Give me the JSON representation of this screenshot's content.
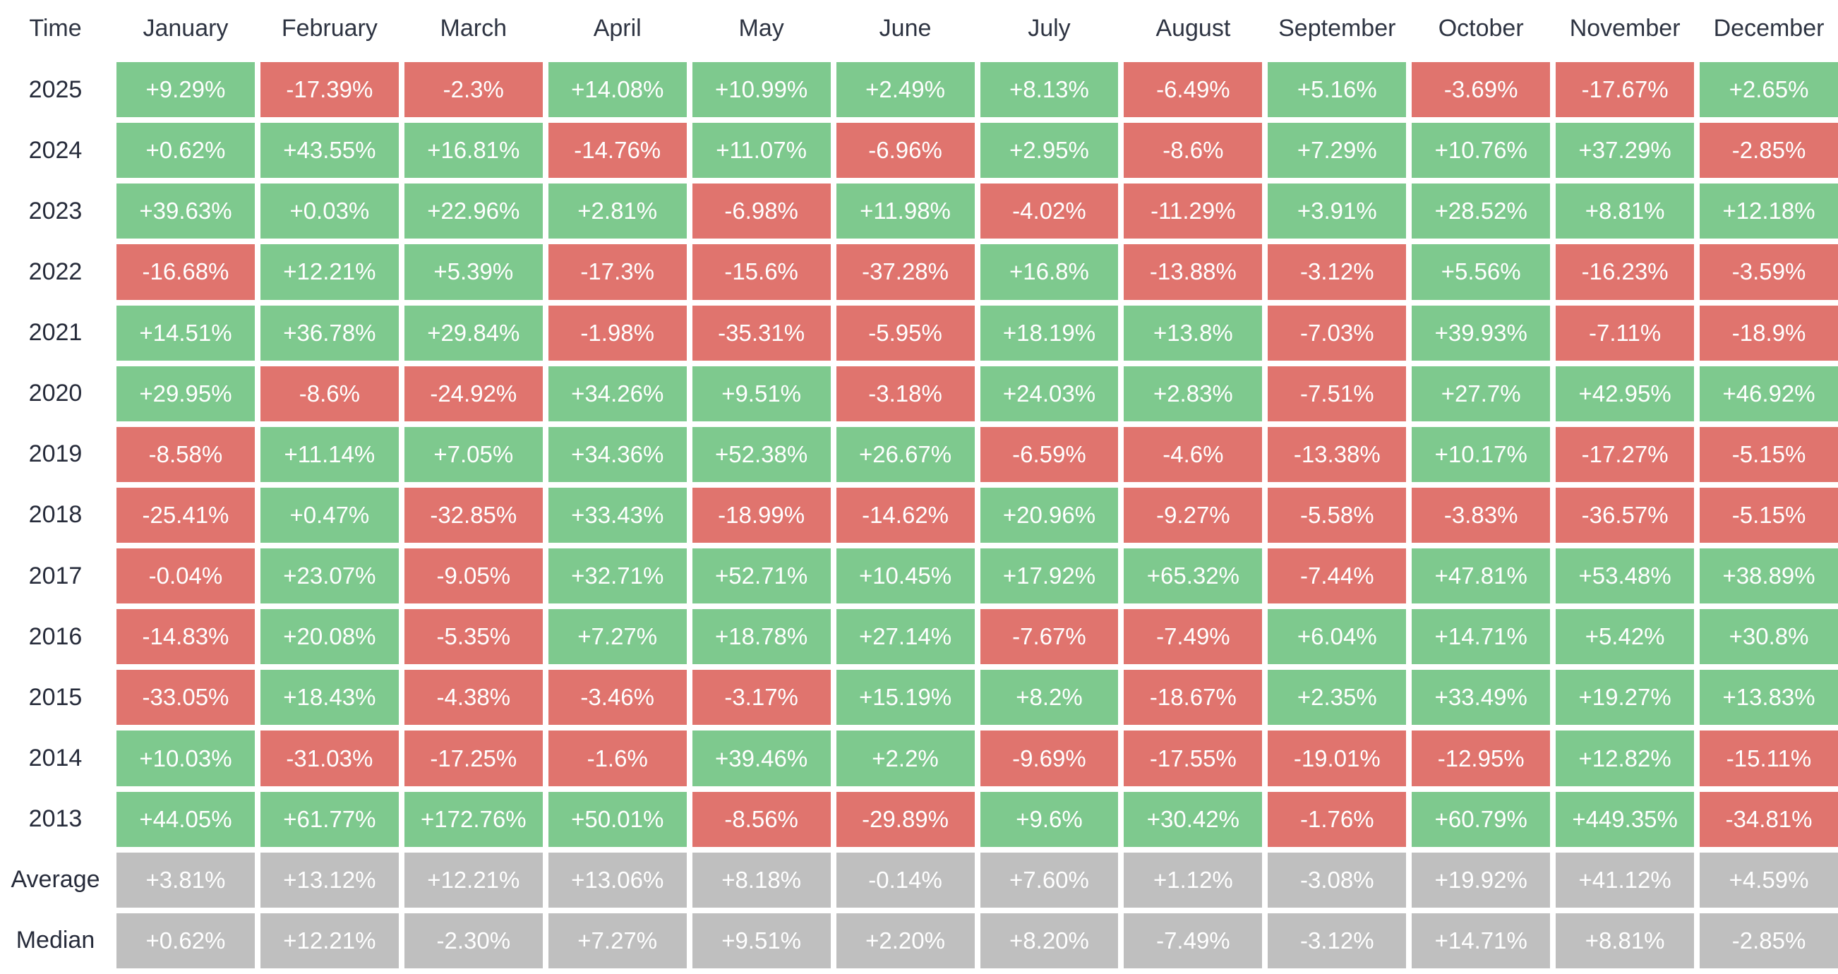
{
  "header": {
    "corner": "Time",
    "months": [
      "January",
      "February",
      "March",
      "April",
      "May",
      "June",
      "July",
      "August",
      "September",
      "October",
      "November",
      "December"
    ]
  },
  "rows": [
    {
      "label": "2025",
      "type": "year",
      "values": [
        "+9.29%",
        "-17.39%",
        "-2.3%",
        "+14.08%",
        "+10.99%",
        "+2.49%",
        "+8.13%",
        "-6.49%",
        "+5.16%",
        "-3.69%",
        "-17.67%",
        "+2.65%"
      ]
    },
    {
      "label": "2024",
      "type": "year",
      "values": [
        "+0.62%",
        "+43.55%",
        "+16.81%",
        "-14.76%",
        "+11.07%",
        "-6.96%",
        "+2.95%",
        "-8.6%",
        "+7.29%",
        "+10.76%",
        "+37.29%",
        "-2.85%"
      ]
    },
    {
      "label": "2023",
      "type": "year",
      "values": [
        "+39.63%",
        "+0.03%",
        "+22.96%",
        "+2.81%",
        "-6.98%",
        "+11.98%",
        "-4.02%",
        "-11.29%",
        "+3.91%",
        "+28.52%",
        "+8.81%",
        "+12.18%"
      ]
    },
    {
      "label": "2022",
      "type": "year",
      "values": [
        "-16.68%",
        "+12.21%",
        "+5.39%",
        "-17.3%",
        "-15.6%",
        "-37.28%",
        "+16.8%",
        "-13.88%",
        "-3.12%",
        "+5.56%",
        "-16.23%",
        "-3.59%"
      ]
    },
    {
      "label": "2021",
      "type": "year",
      "values": [
        "+14.51%",
        "+36.78%",
        "+29.84%",
        "-1.98%",
        "-35.31%",
        "-5.95%",
        "+18.19%",
        "+13.8%",
        "-7.03%",
        "+39.93%",
        "-7.11%",
        "-18.9%"
      ]
    },
    {
      "label": "2020",
      "type": "year",
      "values": [
        "+29.95%",
        "-8.6%",
        "-24.92%",
        "+34.26%",
        "+9.51%",
        "-3.18%",
        "+24.03%",
        "+2.83%",
        "-7.51%",
        "+27.7%",
        "+42.95%",
        "+46.92%"
      ]
    },
    {
      "label": "2019",
      "type": "year",
      "values": [
        "-8.58%",
        "+11.14%",
        "+7.05%",
        "+34.36%",
        "+52.38%",
        "+26.67%",
        "-6.59%",
        "-4.6%",
        "-13.38%",
        "+10.17%",
        "-17.27%",
        "-5.15%"
      ]
    },
    {
      "label": "2018",
      "type": "year",
      "values": [
        "-25.41%",
        "+0.47%",
        "-32.85%",
        "+33.43%",
        "-18.99%",
        "-14.62%",
        "+20.96%",
        "-9.27%",
        "-5.58%",
        "-3.83%",
        "-36.57%",
        "-5.15%"
      ]
    },
    {
      "label": "2017",
      "type": "year",
      "values": [
        "-0.04%",
        "+23.07%",
        "-9.05%",
        "+32.71%",
        "+52.71%",
        "+10.45%",
        "+17.92%",
        "+65.32%",
        "-7.44%",
        "+47.81%",
        "+53.48%",
        "+38.89%"
      ]
    },
    {
      "label": "2016",
      "type": "year",
      "values": [
        "-14.83%",
        "+20.08%",
        "-5.35%",
        "+7.27%",
        "+18.78%",
        "+27.14%",
        "-7.67%",
        "-7.49%",
        "+6.04%",
        "+14.71%",
        "+5.42%",
        "+30.8%"
      ]
    },
    {
      "label": "2015",
      "type": "year",
      "values": [
        "-33.05%",
        "+18.43%",
        "-4.38%",
        "-3.46%",
        "-3.17%",
        "+15.19%",
        "+8.2%",
        "-18.67%",
        "+2.35%",
        "+33.49%",
        "+19.27%",
        "+13.83%"
      ]
    },
    {
      "label": "2014",
      "type": "year",
      "values": [
        "+10.03%",
        "-31.03%",
        "-17.25%",
        "-1.6%",
        "+39.46%",
        "+2.2%",
        "-9.69%",
        "-17.55%",
        "-19.01%",
        "-12.95%",
        "+12.82%",
        "-15.11%"
      ]
    },
    {
      "label": "2013",
      "type": "year",
      "values": [
        "+44.05%",
        "+61.77%",
        "+172.76%",
        "+50.01%",
        "-8.56%",
        "-29.89%",
        "+9.6%",
        "+30.42%",
        "-1.76%",
        "+60.79%",
        "+449.35%",
        "-34.81%"
      ]
    },
    {
      "label": "Average",
      "type": "summary",
      "values": [
        "+3.81%",
        "+13.12%",
        "+12.21%",
        "+13.06%",
        "+8.18%",
        "-0.14%",
        "+7.60%",
        "+1.12%",
        "-3.08%",
        "+19.92%",
        "+41.12%",
        "+4.59%"
      ]
    },
    {
      "label": "Median",
      "type": "summary",
      "values": [
        "+0.62%",
        "+12.21%",
        "-2.30%",
        "+7.27%",
        "+9.51%",
        "+2.20%",
        "+8.20%",
        "-7.49%",
        "-3.12%",
        "+14.71%",
        "+8.81%",
        "-2.85%"
      ]
    }
  ],
  "colors": {
    "positive": "#7ec98e",
    "negative": "#e0746e",
    "summary": "#bfbfbf",
    "header_text": "#2e3442",
    "label_text": "#262b3a",
    "value_text": "#ffffff",
    "background": "#ffffff"
  },
  "chart_data": {
    "type": "heatmap",
    "title": "Monthly performance by year",
    "x_categories": [
      "January",
      "February",
      "March",
      "April",
      "May",
      "June",
      "July",
      "August",
      "September",
      "October",
      "November",
      "December"
    ],
    "y_categories": [
      "2025",
      "2024",
      "2023",
      "2022",
      "2021",
      "2020",
      "2019",
      "2018",
      "2017",
      "2016",
      "2015",
      "2014",
      "2013",
      "Average",
      "Median"
    ],
    "unit": "%",
    "color_rule": "green = positive monthly return, red = negative monthly return, gray = Average/Median summary rows",
    "series": [
      {
        "name": "2025",
        "values": [
          9.29,
          -17.39,
          -2.3,
          14.08,
          10.99,
          2.49,
          8.13,
          -6.49,
          5.16,
          -3.69,
          -17.67,
          2.65
        ]
      },
      {
        "name": "2024",
        "values": [
          0.62,
          43.55,
          16.81,
          -14.76,
          11.07,
          -6.96,
          2.95,
          -8.6,
          7.29,
          10.76,
          37.29,
          -2.85
        ]
      },
      {
        "name": "2023",
        "values": [
          39.63,
          0.03,
          22.96,
          2.81,
          -6.98,
          11.98,
          -4.02,
          -11.29,
          3.91,
          28.52,
          8.81,
          12.18
        ]
      },
      {
        "name": "2022",
        "values": [
          -16.68,
          12.21,
          5.39,
          -17.3,
          -15.6,
          -37.28,
          16.8,
          -13.88,
          -3.12,
          5.56,
          -16.23,
          -3.59
        ]
      },
      {
        "name": "2021",
        "values": [
          14.51,
          36.78,
          29.84,
          -1.98,
          -35.31,
          -5.95,
          18.19,
          13.8,
          -7.03,
          39.93,
          -7.11,
          -18.9
        ]
      },
      {
        "name": "2020",
        "values": [
          29.95,
          -8.6,
          -24.92,
          34.26,
          9.51,
          -3.18,
          24.03,
          2.83,
          -7.51,
          27.7,
          42.95,
          46.92
        ]
      },
      {
        "name": "2019",
        "values": [
          -8.58,
          11.14,
          7.05,
          34.36,
          52.38,
          26.67,
          -6.59,
          -4.6,
          -13.38,
          10.17,
          -17.27,
          -5.15
        ]
      },
      {
        "name": "2018",
        "values": [
          -25.41,
          0.47,
          -32.85,
          33.43,
          -18.99,
          -14.62,
          20.96,
          -9.27,
          -5.58,
          -3.83,
          -36.57,
          -5.15
        ]
      },
      {
        "name": "2017",
        "values": [
          -0.04,
          23.07,
          -9.05,
          32.71,
          52.71,
          10.45,
          17.92,
          65.32,
          -7.44,
          47.81,
          53.48,
          38.89
        ]
      },
      {
        "name": "2016",
        "values": [
          -14.83,
          20.08,
          -5.35,
          7.27,
          18.78,
          27.14,
          -7.67,
          -7.49,
          6.04,
          14.71,
          5.42,
          30.8
        ]
      },
      {
        "name": "2015",
        "values": [
          -33.05,
          18.43,
          -4.38,
          -3.46,
          -3.17,
          15.19,
          8.2,
          -18.67,
          2.35,
          33.49,
          19.27,
          13.83
        ]
      },
      {
        "name": "2014",
        "values": [
          10.03,
          -31.03,
          -17.25,
          -1.6,
          39.46,
          2.2,
          -9.69,
          -17.55,
          -19.01,
          -12.95,
          12.82,
          -15.11
        ]
      },
      {
        "name": "2013",
        "values": [
          44.05,
          61.77,
          172.76,
          50.01,
          -8.56,
          -29.89,
          9.6,
          30.42,
          -1.76,
          60.79,
          449.35,
          -34.81
        ]
      },
      {
        "name": "Average",
        "values": [
          3.81,
          13.12,
          12.21,
          13.06,
          8.18,
          -0.14,
          7.6,
          1.12,
          -3.08,
          19.92,
          41.12,
          4.59
        ]
      },
      {
        "name": "Median",
        "values": [
          0.62,
          12.21,
          -2.3,
          7.27,
          9.51,
          2.2,
          8.2,
          -7.49,
          -3.12,
          14.71,
          8.81,
          -2.85
        ]
      }
    ]
  }
}
